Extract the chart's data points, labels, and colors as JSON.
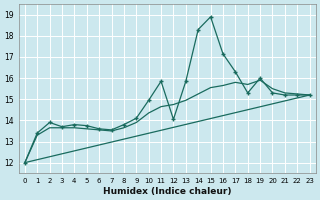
{
  "title": "",
  "xlabel": "Humidex (Indice chaleur)",
  "ylabel": "",
  "xlim": [
    -0.5,
    23.5
  ],
  "ylim": [
    11.5,
    19.5
  ],
  "yticks": [
    12,
    13,
    14,
    15,
    16,
    17,
    18,
    19
  ],
  "xticks": [
    0,
    1,
    2,
    3,
    4,
    5,
    6,
    7,
    8,
    9,
    10,
    11,
    12,
    13,
    14,
    15,
    16,
    17,
    18,
    19,
    20,
    21,
    22,
    23
  ],
  "bg_color": "#cce8ee",
  "line_color": "#1a6b5e",
  "grid_color": "#ffffff",
  "lines": [
    {
      "x": [
        0,
        1,
        2,
        3,
        4,
        5,
        6,
        7,
        8,
        9,
        10,
        11,
        12,
        13,
        14,
        15,
        16,
        17,
        18,
        19,
        20,
        21,
        22,
        23
      ],
      "y": [
        12.0,
        13.4,
        13.9,
        13.7,
        13.8,
        13.75,
        13.6,
        13.55,
        13.8,
        14.1,
        14.95,
        15.85,
        14.05,
        15.85,
        18.3,
        18.9,
        17.15,
        16.3,
        15.3,
        16.0,
        15.3,
        15.2,
        15.2,
        15.2
      ],
      "marker": true
    },
    {
      "x": [
        0,
        1,
        2,
        3,
        4,
        5,
        6,
        7,
        8,
        9,
        10,
        11,
        12,
        13,
        14,
        15,
        16,
        17,
        18,
        19,
        20,
        21,
        22,
        23
      ],
      "y": [
        12.0,
        13.3,
        13.65,
        13.65,
        13.65,
        13.6,
        13.55,
        13.5,
        13.65,
        13.9,
        14.35,
        14.65,
        14.75,
        14.95,
        15.25,
        15.55,
        15.65,
        15.8,
        15.7,
        15.9,
        15.5,
        15.3,
        15.25,
        15.2
      ],
      "marker": false
    },
    {
      "x": [
        0,
        23
      ],
      "y": [
        12.0,
        15.2
      ],
      "marker": false
    }
  ]
}
